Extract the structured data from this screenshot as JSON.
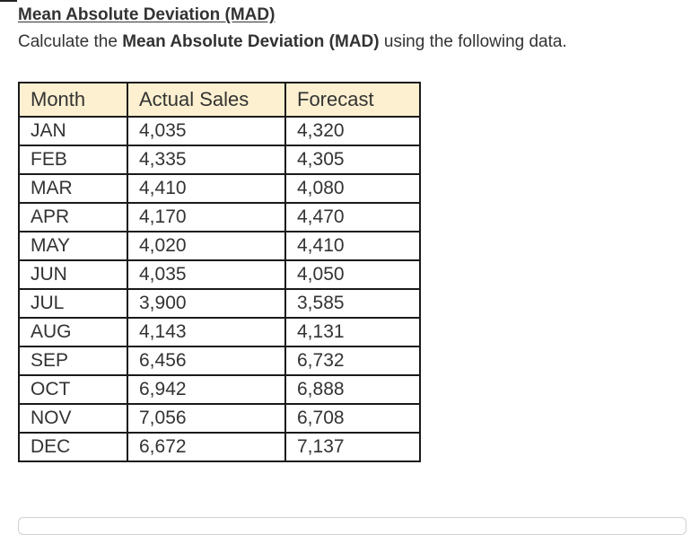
{
  "question": {
    "title": "Mean Absolute Deviation (MAD)",
    "instruction_prefix": "Calculate the ",
    "instruction_bold": "Mean Absolute Deviation (MAD)",
    "instruction_suffix": " using the following data."
  },
  "table": {
    "headers": [
      "Month",
      "Actual Sales",
      "Forecast"
    ],
    "rows": [
      {
        "month": "JAN",
        "actual": "4,035",
        "forecast": "4,320"
      },
      {
        "month": "FEB",
        "actual": "4,335",
        "forecast": "4,305"
      },
      {
        "month": "MAR",
        "actual": "4,410",
        "forecast": "4,080"
      },
      {
        "month": "APR",
        "actual": "4,170",
        "forecast": "4,470"
      },
      {
        "month": "MAY",
        "actual": "4,020",
        "forecast": "4,410"
      },
      {
        "month": "JUN",
        "actual": "4,035",
        "forecast": "4,050"
      },
      {
        "month": "JUL",
        "actual": "3,900",
        "forecast": "3,585"
      },
      {
        "month": "AUG",
        "actual": "4,143",
        "forecast": "4,131"
      },
      {
        "month": "SEP",
        "actual": "6,456",
        "forecast": "6,732"
      },
      {
        "month": "OCT",
        "actual": "6,942",
        "forecast": "6,888"
      },
      {
        "month": "NOV",
        "actual": "7,056",
        "forecast": "6,708"
      },
      {
        "month": "DEC",
        "actual": "6,672",
        "forecast": "7,137"
      }
    ]
  },
  "colors": {
    "header_background": "#fdf0d0",
    "border": "#1a1a1a",
    "text": "#333333"
  }
}
